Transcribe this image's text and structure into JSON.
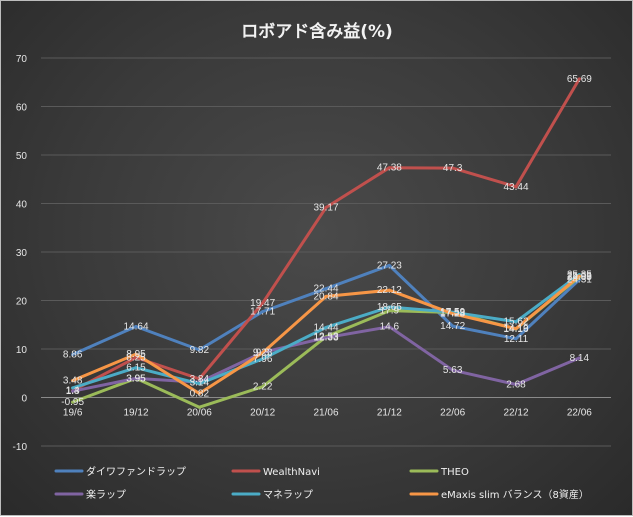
{
  "chart_data": {
    "type": "line",
    "title": "ロボアド含み益(%)",
    "xlabel": "",
    "ylabel": "",
    "categories": [
      "19/6",
      "19/12",
      "20/06",
      "20/12",
      "21/06",
      "21/12",
      "22/06",
      "22/12",
      "22/06"
    ],
    "ylim": [
      -10,
      70
    ],
    "yticks": [
      -10,
      0,
      10,
      20,
      30,
      40,
      50,
      60,
      70
    ],
    "grid": true,
    "legend": "bottom",
    "series": [
      {
        "name": "ダイワファンドラップ",
        "color": "#4f81bd",
        "values": [
          8.86,
          14.64,
          9.82,
          17.71,
          22.44,
          27.23,
          14.72,
          12.11,
          24.31
        ],
        "labels": [
          "8.86",
          "14.64",
          "9.82",
          "17.71",
          "22.44",
          "27.23",
          "14.72",
          "12.11",
          "24.31"
        ]
      },
      {
        "name": "WealthNavi",
        "color": "#c0504d",
        "values": [
          1.4,
          8.25,
          3.84,
          19.47,
          39.17,
          47.38,
          47.3,
          43.44,
          65.69
        ],
        "labels": [
          "1.4",
          "8.25",
          "3.84",
          "19.47",
          "39.17",
          "47.38",
          "47.3",
          "43.44",
          "65.69"
        ]
      },
      {
        "name": "THEO",
        "color": "#9bbb59",
        "values": [
          -0.95,
          3.95,
          -2.0,
          2.22,
          12.53,
          17.9,
          17.53,
          14.16,
          24.85
        ],
        "labels": [
          "-0.95",
          "3.95",
          "",
          "2.22",
          "12.53",
          "17.9",
          "17.53",
          "14.16",
          "24.85"
        ]
      },
      {
        "name": "楽ラップ",
        "color": "#8064a2",
        "values": [
          1.3,
          3.95,
          3.14,
          9.3,
          12.33,
          14.6,
          5.63,
          2.68,
          8.14
        ],
        "labels": [
          "1.3",
          "3.95",
          "3.14",
          "9.3",
          "12.33",
          "14.6",
          "5.63",
          "2.68",
          "8.14"
        ]
      },
      {
        "name": "マネラップ",
        "color": "#4bacc6",
        "values": [
          1.98,
          6.15,
          2.85,
          7.96,
          14.44,
          18.65,
          17.59,
          15.62,
          25.35
        ],
        "labels": [
          "",
          "6.15",
          "",
          "7.96",
          "14.44",
          "18.65",
          "17.59",
          "15.62",
          "25.35"
        ]
      },
      {
        "name": "eMaxis slim バランス（8資産）",
        "color": "#f79646",
        "values": [
          3.48,
          8.95,
          0.82,
          9.23,
          20.84,
          22.12,
          17.28,
          14.19,
          25.05
        ],
        "labels": [
          "3.48",
          "8.95",
          "0.82",
          "9.23",
          "20.84",
          "22.12",
          "17.28",
          "14.19",
          "25.05"
        ]
      }
    ]
  }
}
